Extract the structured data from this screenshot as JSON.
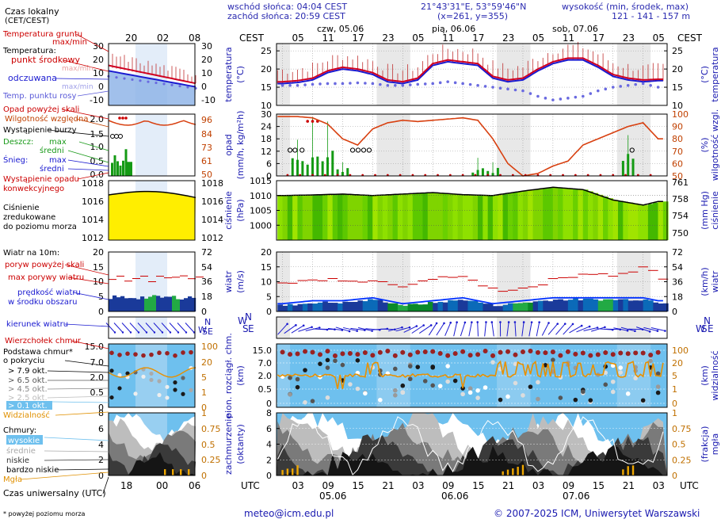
{
  "header": {
    "sunrise": "wschód słońca: 04:04 CEST",
    "sunset": "zachód słońca: 20:59 CEST",
    "coords": "21°43'31\"E, 53°59'46\"N",
    "grid": "(x=261, y=355)",
    "elev_title": "wysokość (min, środek, max)",
    "elev_values": "121 - 141 - 157 m"
  },
  "legend": {
    "local_time": "Czas lokalny",
    "local_time_tz": "(CET/CEST)",
    "soil_temp": "Temperatura gruntu",
    "soil_temp_sub": "max/min",
    "temperature": "Temperatura:",
    "mid_point": "punkt środkowy",
    "max_min": "max/min",
    "feels_like": "odczuwana",
    "max_min2": "max/min",
    "dew_point": "Temp. punktu rosy",
    "precip_above": "Opad powyżej skali",
    "rel_humidity": "Wilgotność względna",
    "storm": "Wystąpienie burzy",
    "rain": "Deszcz:",
    "rain_max": "max",
    "rain_mean": "średni",
    "snow": "Śnieg:",
    "snow_max": "max",
    "snow_mean": "średni",
    "precip_occur": "Wystąpienie opadu",
    "precip_occur2": "konwekcyjnego",
    "pressure1": "Ciśnienie",
    "pressure2": "zredukowane",
    "pressure3": "do poziomu morza",
    "wind10": "Wiatr na 10m:",
    "gust_above": "poryw powyżej skali",
    "max_gust": "max porywy wiatru",
    "wind_speed": "prędkość wiatru",
    "wind_speed2": "w środku obszaru",
    "wind_dir": "kierunek wiatru",
    "cb_top": "Wierzchołek chmur",
    "cloud_base": "Podstawa chmur*",
    "cloud_base2": "o pokryciu",
    "okt79": "> 7.9 okt.",
    "okt65": "> 6.5 okt.",
    "okt45": "> 4.5 okt.",
    "okt25": "> 2.5 okt.",
    "okt01": "> 0.1 okt.",
    "visibility": "Widzialność",
    "clouds": "Chmury:",
    "high": "wysokie",
    "middle": "średnie",
    "low": "niskie",
    "very_low": "bardzo niskie",
    "fog": "Mgła",
    "utc": "Czas uniwersalny (UTC)",
    "footnote": "* powyżej poziomu morza"
  },
  "top_axis": {
    "left_label": "CEST",
    "right_label": "CEST",
    "hours": [
      "05",
      "11",
      "17",
      "23",
      "05",
      "11",
      "17",
      "23",
      "05",
      "11",
      "17",
      "23",
      "05"
    ],
    "days": [
      "czw, 05.06",
      "pią, 06.06",
      "sob, 07.06"
    ],
    "mini_hours": [
      "20",
      "02",
      "08"
    ]
  },
  "bottom_axis": {
    "left_label": "UTC",
    "right_label": "UTC",
    "hours": [
      "03",
      "09",
      "15",
      "21",
      "03",
      "09",
      "15",
      "21",
      "03",
      "09",
      "15",
      "21",
      "03"
    ],
    "dates": [
      "05.06",
      "06.06",
      "07.06"
    ],
    "mini_hours": [
      "18",
      "00",
      "06"
    ]
  },
  "panel_labels": {
    "temp_left": "temperatura (°C)",
    "temp_right": "temperatura (°C)",
    "precip_left": "opad (mm/h, kg/m²h)",
    "precip_right": "wilgotność wzgl. (%)",
    "press_left": "ciśnienie (hPa)",
    "press_right": "ciśnienie (mm Hg)",
    "wind_left": "wiatr (m/s)",
    "wind_right": "wiatr (km/h)",
    "cloud_left": "pion. rozciągł. chm. (km)",
    "cloud_right": "widzialność (km)",
    "cover_left": "zachmurzenie (oktanty)",
    "cover_right": "mgła (frakcja)"
  },
  "footer": {
    "email": "meteo@icm.edu.pl",
    "copyright": "© 2007-2025 ICM, Uniwersytet Warszawski"
  },
  "chart_data": [
    {
      "type": "line",
      "name": "temperature",
      "ylabel": "temperatura (°C)",
      "ylim": [
        10,
        27
      ],
      "yticks": [
        10,
        15,
        20,
        25
      ],
      "yticks_right": [
        10,
        15,
        20,
        25
      ],
      "x_hours_utc": [
        0,
        3,
        6,
        9,
        12,
        15,
        18,
        21,
        24,
        27,
        30,
        33,
        36,
        39,
        42,
        45,
        48,
        51,
        54,
        57,
        60,
        63,
        66,
        69,
        72,
        75
      ],
      "series": [
        {
          "name": "punkt środkowy",
          "values": [
            16.5,
            16.8,
            17.5,
            19.5,
            20.5,
            20.0,
            19.0,
            17.0,
            16.5,
            17.5,
            21.5,
            22.5,
            22.0,
            21.5,
            18.0,
            17.0,
            17.5,
            20.0,
            22.0,
            23.0,
            23.0,
            21.0,
            18.5,
            17.5,
            17.0,
            17.2
          ]
        },
        {
          "name": "odczuwana",
          "values": [
            16.0,
            16.3,
            17.0,
            19.0,
            20.0,
            19.5,
            18.5,
            16.5,
            16.0,
            17.0,
            21.0,
            22.0,
            21.5,
            21.0,
            17.5,
            16.5,
            17.0,
            19.5,
            21.5,
            22.5,
            22.5,
            20.5,
            18.0,
            17.0,
            16.5,
            16.8
          ]
        },
        {
          "name": "Temp. punktu rosy",
          "values": [
            15.5,
            15.5,
            15.8,
            16.0,
            16.0,
            16.2,
            16.0,
            15.5,
            15.5,
            15.8,
            16.0,
            16.5,
            16.0,
            15.5,
            15.0,
            14.5,
            14.0,
            12.5,
            11.5,
            12.0,
            12.5,
            14.0,
            15.0,
            15.5,
            16.0,
            15.0
          ]
        }
      ]
    },
    {
      "type": "bar",
      "name": "precipitation",
      "ylabel": "opad (mm/h, kg/m²h)",
      "ylim": [
        0,
        30
      ],
      "yticks": [
        0,
        6,
        12,
        18,
        24,
        30
      ],
      "yticks_right": [
        50,
        61,
        73,
        84,
        96
      ],
      "y2lim": [
        50,
        100
      ],
      "y2ticks": [
        50,
        60,
        70,
        80,
        90,
        100
      ],
      "x_hours_utc": [
        0,
        3,
        6,
        9,
        12,
        15,
        18,
        21,
        24,
        27,
        30,
        33,
        36,
        39,
        42,
        45,
        48,
        51,
        54,
        57,
        60,
        63,
        66,
        69,
        72,
        75
      ],
      "series": [
        {
          "name": "Deszcz max",
          "values": [
            0,
            8,
            13,
            12,
            3,
            0,
            0,
            0,
            0,
            0,
            0,
            0,
            0,
            4,
            3,
            0,
            0,
            0,
            0,
            0,
            0,
            0,
            0,
            9,
            0,
            0
          ]
        },
        {
          "name": "Wilgotność względna",
          "values": [
            98,
            98,
            97,
            92,
            80,
            75,
            88,
            93,
            95,
            94,
            95,
            96,
            97,
            95,
            80,
            60,
            50,
            52,
            58,
            62,
            75,
            80,
            85,
            90,
            93,
            80
          ]
        }
      ]
    },
    {
      "type": "area",
      "name": "pressure",
      "ylabel": "ciśnienie (hPa)",
      "ylim": [
        995,
        1015
      ],
      "yticks": [
        1000,
        1005,
        1010,
        1015
      ],
      "yticks_right": [
        750,
        754,
        758,
        761
      ],
      "x_hours_utc": [
        0,
        6,
        12,
        18,
        24,
        30,
        36,
        42,
        48,
        54,
        60,
        66,
        72,
        75
      ],
      "series": [
        {
          "name": "ciśnienie",
          "values": [
            1010,
            1010.2,
            1010.5,
            1010.0,
            1010.5,
            1011.0,
            1010.3,
            1010.0,
            1011.5,
            1012.8,
            1012.0,
            1008.5,
            1006.8,
            1008.0
          ]
        }
      ]
    },
    {
      "type": "line",
      "name": "wind",
      "ylabel": "wiatr (m/s)",
      "ylim": [
        0,
        20
      ],
      "yticks": [
        0,
        5,
        10,
        15,
        20
      ],
      "yticks_right": [
        0,
        18,
        36,
        54,
        72
      ],
      "x_hours_utc": [
        0,
        6,
        12,
        18,
        24,
        30,
        36,
        42,
        48,
        54,
        60,
        66,
        72,
        75
      ],
      "series": [
        {
          "name": "max porywy wiatru",
          "values": [
            9,
            11,
            10,
            10,
            8,
            12,
            11,
            7,
            8,
            11,
            13,
            12,
            15,
            11
          ]
        },
        {
          "name": "prędkość wiatru",
          "values": [
            2,
            3,
            3,
            4,
            2,
            3,
            4,
            2,
            3,
            4,
            4,
            4,
            4,
            3
          ]
        }
      ]
    },
    {
      "type": "scatter",
      "name": "cloud_base",
      "ylabel": "pion. rozciągł. chm. (km)",
      "ylim": [
        0,
        15
      ],
      "yticks": [
        0,
        0.5,
        2.0,
        7.0,
        15.0
      ],
      "yticks_right": [
        0,
        1,
        5,
        20,
        100
      ],
      "x_hours_utc": [
        0,
        6,
        12,
        18,
        24,
        30,
        36,
        42,
        48,
        54,
        60,
        66,
        72,
        75
      ],
      "series": [
        {
          "name": "Widzialność",
          "values": [
            20,
            8,
            5,
            20,
            8,
            20,
            3,
            20,
            20,
            20,
            20,
            20,
            20,
            20
          ]
        }
      ]
    },
    {
      "type": "area",
      "name": "cloud_cover",
      "ylabel": "zachmurzenie (oktanty)",
      "ylim": [
        0,
        8
      ],
      "yticks": [
        0,
        2,
        4,
        6,
        8
      ],
      "yticks_right": [
        0,
        0.25,
        0.5,
        0.75,
        1
      ],
      "x_hours_utc": [
        0,
        6,
        12,
        18,
        24,
        30,
        36,
        42,
        48,
        54,
        60,
        66,
        72,
        75
      ],
      "series": [
        {
          "name": "wysokie",
          "values": [
            6,
            7,
            5,
            6,
            4,
            5,
            7,
            6,
            3,
            7,
            5,
            6,
            7,
            4
          ]
        },
        {
          "name": "Mgła",
          "values": [
            0.1,
            0,
            0,
            0,
            0.2,
            0,
            0,
            0.1,
            0,
            0,
            0,
            0,
            0,
            0
          ]
        }
      ]
    }
  ]
}
